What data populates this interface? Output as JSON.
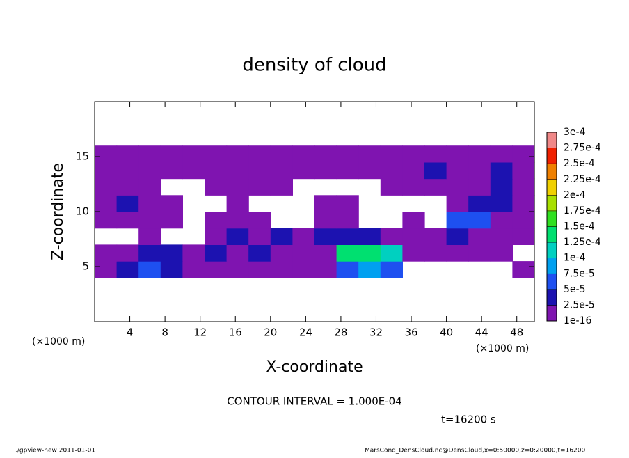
{
  "chart_data": {
    "type": "contour",
    "title": "density of cloud",
    "x_label": "X-coordinate",
    "y_label": "Z-coordinate",
    "x_unit": "(×1000 m)",
    "x_unit_right": "(×1000 m)",
    "xlim": [
      0,
      50
    ],
    "xticks": [
      4,
      8,
      12,
      16,
      20,
      24,
      28,
      32,
      36,
      40,
      44,
      48
    ],
    "ylim": [
      0,
      20
    ],
    "yticks": [
      5,
      10,
      15
    ],
    "x": [
      1.25,
      3.75,
      6.25,
      8.75,
      11.25,
      13.75,
      16.25,
      18.75,
      21.25,
      23.75,
      26.25,
      28.75,
      31.25,
      33.75,
      36.25,
      38.75,
      41.25,
      43.75,
      46.25,
      48.75
    ],
    "y": [
      4.75,
      6.25,
      7.75,
      9.25,
      10.75,
      12.25,
      13.75,
      15.25
    ],
    "z": [
      [
        1e-16,
        2.5e-05,
        5e-05,
        2.5e-05,
        1e-16,
        1e-16,
        1e-16,
        1e-16,
        1e-16,
        1e-16,
        1e-16,
        5e-05,
        7.5e-05,
        5e-05,
        null,
        null,
        null,
        null,
        null,
        1e-16
      ],
      [
        1e-16,
        1e-16,
        2.5e-05,
        2.5e-05,
        1e-16,
        2.5e-05,
        1e-16,
        2.5e-05,
        1e-16,
        1e-16,
        1e-16,
        0.000125,
        0.000125,
        0.0001,
        1e-16,
        1e-16,
        1e-16,
        1e-16,
        1e-16,
        null
      ],
      [
        null,
        null,
        1e-16,
        null,
        null,
        1e-16,
        2.5e-05,
        1e-16,
        2.5e-05,
        1e-16,
        2.5e-05,
        2.5e-05,
        2.5e-05,
        1e-16,
        1e-16,
        1e-16,
        2.5e-05,
        1e-16,
        1e-16,
        1e-16
      ],
      [
        1e-16,
        1e-16,
        1e-16,
        1e-16,
        null,
        1e-16,
        1e-16,
        1e-16,
        null,
        null,
        1e-16,
        1e-16,
        null,
        null,
        1e-16,
        null,
        5e-05,
        5e-05,
        1e-16,
        1e-16
      ],
      [
        1e-16,
        2.5e-05,
        1e-16,
        1e-16,
        null,
        null,
        1e-16,
        null,
        null,
        null,
        1e-16,
        1e-16,
        null,
        null,
        null,
        null,
        1e-16,
        2.5e-05,
        2.5e-05,
        1e-16
      ],
      [
        1e-16,
        1e-16,
        1e-16,
        null,
        null,
        1e-16,
        1e-16,
        1e-16,
        1e-16,
        null,
        null,
        null,
        null,
        1e-16,
        1e-16,
        1e-16,
        1e-16,
        1e-16,
        2.5e-05,
        1e-16
      ],
      [
        1e-16,
        1e-16,
        1e-16,
        1e-16,
        1e-16,
        1e-16,
        1e-16,
        1e-16,
        1e-16,
        1e-16,
        1e-16,
        1e-16,
        1e-16,
        1e-16,
        1e-16,
        2.5e-05,
        1e-16,
        1e-16,
        2.5e-05,
        1e-16
      ],
      [
        1e-16,
        1e-16,
        1e-16,
        1e-16,
        1e-16,
        1e-16,
        1e-16,
        1e-16,
        1e-16,
        1e-16,
        1e-16,
        1e-16,
        1e-16,
        1e-16,
        1e-16,
        1e-16,
        1e-16,
        1e-16,
        1e-16,
        1e-16
      ]
    ],
    "levels": [
      {
        "value": 1e-16,
        "label": "1e-16"
      },
      {
        "value": 2.5e-05,
        "label": "2.5e-5"
      },
      {
        "value": 5e-05,
        "label": "5e-5"
      },
      {
        "value": 7.5e-05,
        "label": "7.5e-5"
      },
      {
        "value": 0.0001,
        "label": "1e-4"
      },
      {
        "value": 0.000125,
        "label": "1.25e-4"
      },
      {
        "value": 0.00015,
        "label": "1.5e-4"
      },
      {
        "value": 0.000175,
        "label": "1.75e-4"
      },
      {
        "value": 0.0002,
        "label": "2e-4"
      },
      {
        "value": 0.000225,
        "label": "2.25e-4"
      },
      {
        "value": 0.00025,
        "label": "2.5e-4"
      },
      {
        "value": 0.000275,
        "label": "2.75e-4"
      },
      {
        "value": 0.0003,
        "label": "3e-4"
      }
    ],
    "colors": [
      "#7f14b0",
      "#1c12b0",
      "#1e50f0",
      "#00a0f0",
      "#00d0c0",
      "#00e070",
      "#30e020",
      "#a8e000",
      "#f0d000",
      "#f08000",
      "#f02000",
      "#f08888"
    ],
    "contour_interval": "CONTOUR INTERVAL = 1.000E-04",
    "time": "t=16200 s",
    "footer_left": "./gpview-new   2011-01-01",
    "footer_right": "MarsCond_DensCloud.nc@DensCloud,x=0:50000,z=0:20000,t=16200"
  }
}
